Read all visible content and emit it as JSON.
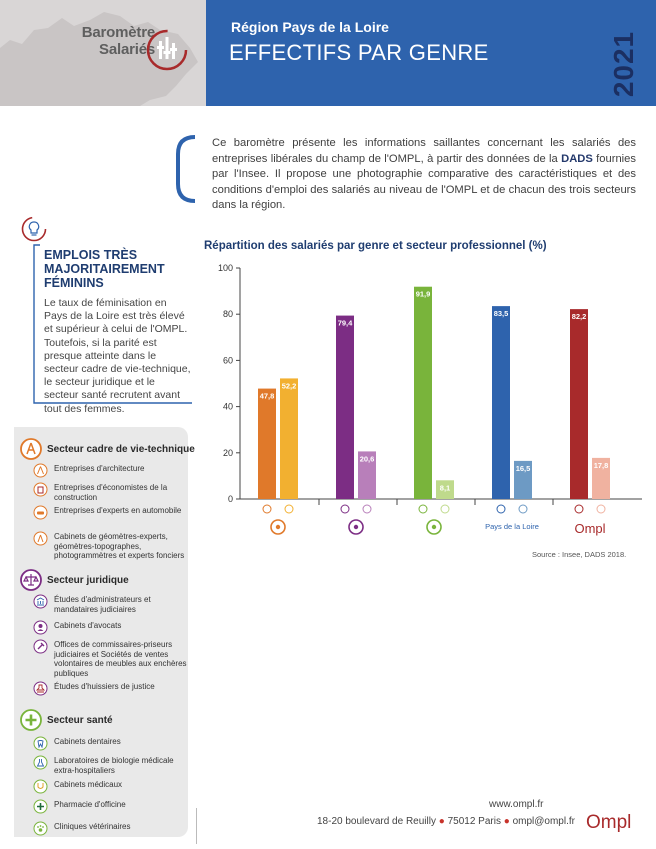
{
  "header": {
    "brand": [
      "Baromètre",
      "Salariés"
    ],
    "region": "Région Pays de la Loire",
    "title": "EFFECTIFS PAR GENRE",
    "year": "2021",
    "colors": {
      "band": "#2e63ad",
      "year": "#1b2f62",
      "grey": "#d9d6d6"
    }
  },
  "intro": {
    "before_bold": "Ce baromètre présente les informations saillantes concernant les salariés des entreprises libérales du champ de l'OMPL, à partir des données de la ",
    "bold": "DADS",
    "after_bold": " fournies par l'Insee. Il propose une photographie comparative des caractéristiques et des conditions d'emploi des salariés au niveau de l'OMPL et de chacun des trois secteurs dans la région."
  },
  "emplois": {
    "icon": "lightbulb-icon",
    "title": "EMPLOIS TRÈS MAJORITAIREMENT FÉMININS",
    "body": "Le taux de féminisation en Pays de la Loire est très élevé et supérieur à celui de l'OMPL. Toutefois, si la parité est presque atteinte dans le secteur cadre de vie-technique, le secteur juridique et le secteur santé recrutent avant tout des femmes."
  },
  "sectors": [
    {
      "name": "Secteur cadre de vie-technique",
      "icon": "compass-icon",
      "color": "#e0792a",
      "items": [
        {
          "label": "Entreprises d'architecture",
          "icon": "architecture-icon"
        },
        {
          "label": "Entreprises d'économistes de la construction",
          "icon": "building-icon"
        },
        {
          "label": "Entreprises d'experts en automobile",
          "icon": "car-icon"
        },
        {
          "label": "Cabinets de géomètres-experts, géomètres-topographes, photogrammètres et experts fonciers",
          "icon": "theodolite-icon"
        }
      ]
    },
    {
      "name": "Secteur juridique",
      "icon": "scales-icon",
      "color": "#7c2d84",
      "items": [
        {
          "label": "Études d'administrateurs et mandataires judiciaires",
          "icon": "courthouse-icon"
        },
        {
          "label": "Cabinets d'avocats",
          "icon": "lawyer-icon"
        },
        {
          "label": "Offices de commissaires-priseurs judiciaires et Sociétés de ventes volontaires de meubles aux enchères publiques",
          "icon": "gavel-icon"
        },
        {
          "label": "Études d'huissiers de justice",
          "icon": "stamp-icon"
        }
      ]
    },
    {
      "name": "Secteur santé",
      "icon": "plus-icon",
      "color": "#79b43b",
      "items": [
        {
          "label": "Cabinets dentaires",
          "icon": "tooth-icon"
        },
        {
          "label": "Laboratoires de biologie médicale extra-hospitaliers",
          "icon": "flask-icon"
        },
        {
          "label": "Cabinets médicaux",
          "icon": "stethoscope-icon"
        },
        {
          "label": "Pharmacie d'officine",
          "icon": "pharmacy-icon"
        },
        {
          "label": "Cliniques vétérinaires",
          "icon": "paw-icon"
        }
      ]
    }
  ],
  "chart_data": {
    "type": "bar",
    "title": "Répartition des salariés par genre et secteur professionnel (%)",
    "categories": [
      "Secteur cadre de vie-technique",
      "Secteur juridique",
      "Secteur santé",
      "Pays de la Loire",
      "Ompl"
    ],
    "category_labels": [
      "",
      "",
      "",
      "Pays de la Loire",
      "Ompl"
    ],
    "series": [
      {
        "name": "",
        "values": [
          47.8,
          79.4,
          91.9,
          83.5,
          82.2
        ],
        "labels": [
          "47,8",
          "79,4",
          "91,9",
          "83,5",
          "82,2"
        ],
        "colors": [
          "#e0792a",
          "#7c2d84",
          "#79b43b",
          "#2e63ad",
          "#a82a2b"
        ]
      },
      {
        "name": "",
        "values": [
          52.2,
          20.6,
          8.1,
          16.5,
          17.8
        ],
        "labels": [
          "52,2",
          "20,6",
          "8,1",
          "16,5",
          "17,8"
        ],
        "colors": [
          "#f2b030",
          "#b87fba",
          "#bfda8c",
          "#6d9ac4",
          "#f0b2a0"
        ]
      }
    ],
    "yticks": [
      0,
      20,
      40,
      60,
      80,
      100
    ],
    "ylim": [
      0,
      100
    ],
    "grid": false,
    "source": "Source : Insee, DADS 2018."
  },
  "footer": {
    "web": "www.ompl.fr",
    "address": "18-20 boulevard de Reuilly",
    "city": "75012 Paris",
    "email": "ompl@ompl.fr",
    "logo": "Ompl"
  }
}
